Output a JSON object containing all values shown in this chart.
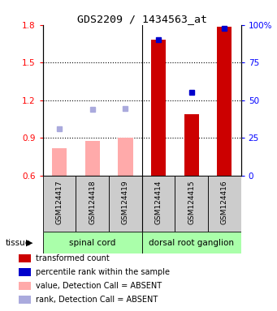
{
  "title": "GDS2209 / 1434563_at",
  "samples": [
    "GSM124417",
    "GSM124418",
    "GSM124419",
    "GSM124414",
    "GSM124415",
    "GSM124416"
  ],
  "bar_values": [
    0.82,
    0.875,
    0.905,
    1.685,
    1.09,
    1.785
  ],
  "bar_absent": [
    true,
    true,
    true,
    false,
    false,
    false
  ],
  "rank_values": [
    0.975,
    1.13,
    1.135,
    1.685,
    1.265,
    1.775
  ],
  "rank_absent": [
    true,
    true,
    true,
    false,
    false,
    false
  ],
  "ylim_left": [
    0.6,
    1.8
  ],
  "ylim_right": [
    0,
    100
  ],
  "yticks_left": [
    0.6,
    0.9,
    1.2,
    1.5,
    1.8
  ],
  "yticks_right": [
    0,
    25,
    50,
    75,
    100
  ],
  "ytick_labels_right": [
    "0",
    "25",
    "50",
    "75",
    "100%"
  ],
  "tissue_groups": [
    {
      "label": "spinal cord",
      "start": 0,
      "end": 3
    },
    {
      "label": "dorsal root ganglion",
      "start": 3,
      "end": 6
    }
  ],
  "color_bar_present": "#cc0000",
  "color_bar_absent": "#ffaaaa",
  "color_rank_present": "#0000cc",
  "color_rank_absent": "#aaaadd",
  "tissue_color": "#aaffaa",
  "bar_width": 0.45,
  "base_value": 0.6,
  "grid_lines": [
    0.9,
    1.2,
    1.5
  ],
  "legend_items": [
    {
      "color": "#cc0000",
      "label": "transformed count"
    },
    {
      "color": "#0000cc",
      "label": "percentile rank within the sample"
    },
    {
      "color": "#ffaaaa",
      "label": "value, Detection Call = ABSENT"
    },
    {
      "color": "#aaaadd",
      "label": "rank, Detection Call = ABSENT"
    }
  ]
}
